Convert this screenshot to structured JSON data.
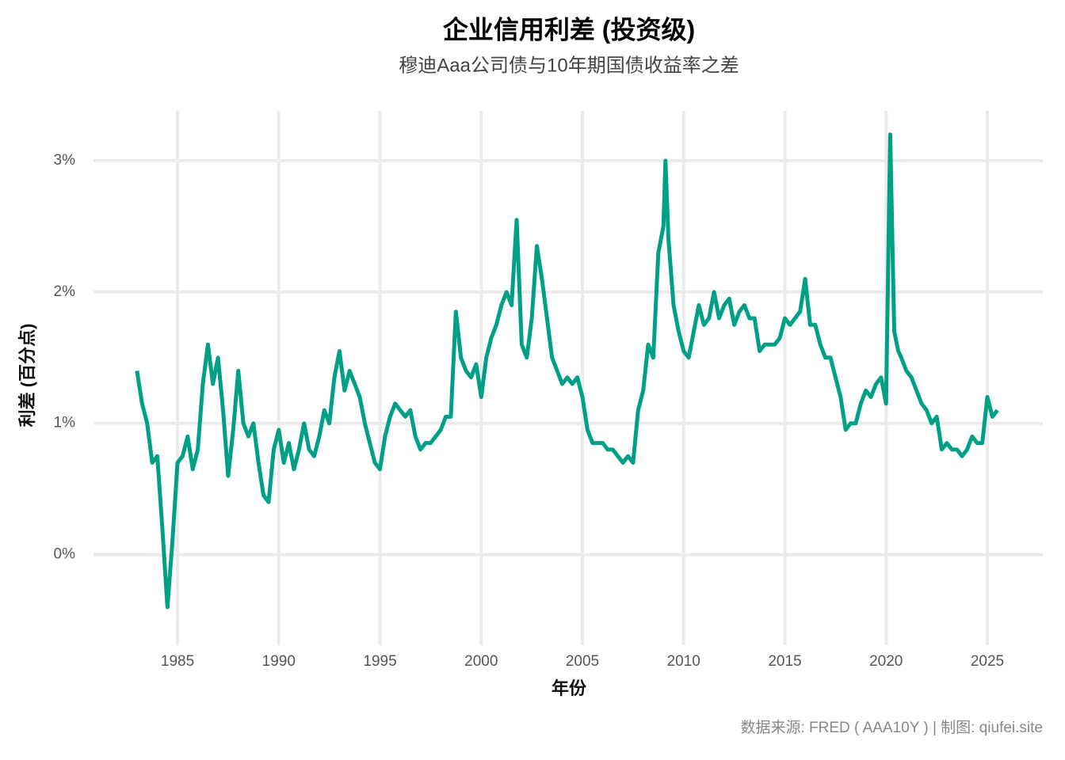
{
  "chart_data": {
    "type": "line",
    "title": "企业信用利差 (投资级)",
    "subtitle": "穆迪Aaa公司债与10年期国债收益率之差",
    "x_label": "年份",
    "y_label": "利差 (百分点)",
    "caption": "数据来源: FRED ( AAA10Y ) | 制图: qiufei.site",
    "grid": true,
    "xlim": [
      1980.85,
      2027.74
    ],
    "ylim": [
      -0.69,
      3.38
    ],
    "xticks": [
      1985,
      1990,
      1995,
      2000,
      2005,
      2010,
      2015,
      2020,
      2025
    ],
    "yticks": [
      {
        "value": 0,
        "label": "0%"
      },
      {
        "value": 1,
        "label": "1%"
      },
      {
        "value": 2,
        "label": "2%"
      },
      {
        "value": 3,
        "label": "3%"
      }
    ],
    "x": [
      1983.0,
      1983.25,
      1983.5,
      1983.75,
      1984.0,
      1984.25,
      1984.5,
      1984.75,
      1985.0,
      1985.25,
      1985.5,
      1985.75,
      1986.0,
      1986.25,
      1986.5,
      1986.75,
      1987.0,
      1987.25,
      1987.5,
      1987.75,
      1988.0,
      1988.25,
      1988.5,
      1988.75,
      1989.0,
      1989.25,
      1989.5,
      1989.75,
      1990.0,
      1990.25,
      1990.5,
      1990.75,
      1991.0,
      1991.25,
      1991.5,
      1991.75,
      1992.0,
      1992.25,
      1992.5,
      1992.75,
      1993.0,
      1993.25,
      1993.5,
      1993.75,
      1994.0,
      1994.25,
      1994.5,
      1994.75,
      1995.0,
      1995.25,
      1995.5,
      1995.75,
      1996.0,
      1996.25,
      1996.5,
      1996.75,
      1997.0,
      1997.25,
      1997.5,
      1997.75,
      1998.0,
      1998.25,
      1998.5,
      1998.75,
      1999.0,
      1999.25,
      1999.5,
      1999.75,
      2000.0,
      2000.25,
      2000.5,
      2000.75,
      2001.0,
      2001.25,
      2001.5,
      2001.75,
      2002.0,
      2002.25,
      2002.5,
      2002.75,
      2003.0,
      2003.25,
      2003.5,
      2003.75,
      2004.0,
      2004.25,
      2004.5,
      2004.75,
      2005.0,
      2005.25,
      2005.5,
      2005.75,
      2006.0,
      2006.25,
      2006.5,
      2006.75,
      2007.0,
      2007.25,
      2007.5,
      2007.75,
      2008.0,
      2008.25,
      2008.5,
      2008.75,
      2009.0,
      2009.1,
      2009.25,
      2009.5,
      2009.75,
      2010.0,
      2010.25,
      2010.5,
      2010.75,
      2011.0,
      2011.25,
      2011.5,
      2011.75,
      2012.0,
      2012.25,
      2012.5,
      2012.75,
      2013.0,
      2013.25,
      2013.5,
      2013.75,
      2014.0,
      2014.25,
      2014.5,
      2014.75,
      2015.0,
      2015.25,
      2015.5,
      2015.75,
      2016.0,
      2016.25,
      2016.5,
      2016.75,
      2017.0,
      2017.25,
      2017.5,
      2017.75,
      2018.0,
      2018.25,
      2018.5,
      2018.75,
      2019.0,
      2019.25,
      2019.5,
      2019.75,
      2020.0,
      2020.2,
      2020.4,
      2020.6,
      2020.75,
      2021.0,
      2021.25,
      2021.5,
      2021.75,
      2022.0,
      2022.25,
      2022.5,
      2022.75,
      2023.0,
      2023.25,
      2023.5,
      2023.75,
      2024.0,
      2024.25,
      2024.5,
      2024.75,
      2025.0,
      2025.25,
      2025.5
    ],
    "series": [
      {
        "name": "AAA10Y",
        "color": "#00a087",
        "values": [
          1.4,
          1.15,
          1.0,
          0.7,
          0.75,
          0.2,
          -0.4,
          0.1,
          0.7,
          0.75,
          0.9,
          0.65,
          0.8,
          1.3,
          1.6,
          1.3,
          1.5,
          1.1,
          0.6,
          0.95,
          1.4,
          1.0,
          0.9,
          1.0,
          0.7,
          0.45,
          0.4,
          0.8,
          0.95,
          0.7,
          0.85,
          0.65,
          0.8,
          1.0,
          0.8,
          0.75,
          0.9,
          1.1,
          1.0,
          1.35,
          1.55,
          1.25,
          1.4,
          1.3,
          1.2,
          1.0,
          0.85,
          0.7,
          0.65,
          0.9,
          1.05,
          1.15,
          1.1,
          1.05,
          1.1,
          0.9,
          0.8,
          0.85,
          0.85,
          0.9,
          0.95,
          1.05,
          1.05,
          1.85,
          1.5,
          1.4,
          1.35,
          1.45,
          1.2,
          1.5,
          1.65,
          1.75,
          1.9,
          2.0,
          1.9,
          2.55,
          1.6,
          1.5,
          1.8,
          2.35,
          2.1,
          1.8,
          1.5,
          1.4,
          1.3,
          1.35,
          1.3,
          1.35,
          1.2,
          0.95,
          0.85,
          0.85,
          0.85,
          0.8,
          0.8,
          0.75,
          0.7,
          0.75,
          0.7,
          1.1,
          1.25,
          1.6,
          1.5,
          2.3,
          2.5,
          3.0,
          2.4,
          1.9,
          1.7,
          1.55,
          1.5,
          1.7,
          1.9,
          1.75,
          1.8,
          2.0,
          1.8,
          1.9,
          1.95,
          1.75,
          1.85,
          1.9,
          1.8,
          1.8,
          1.55,
          1.6,
          1.6,
          1.6,
          1.65,
          1.8,
          1.75,
          1.8,
          1.85,
          2.1,
          1.75,
          1.75,
          1.6,
          1.5,
          1.5,
          1.35,
          1.2,
          0.95,
          1.0,
          1.0,
          1.15,
          1.25,
          1.2,
          1.3,
          1.35,
          1.15,
          3.2,
          1.7,
          1.55,
          1.5,
          1.4,
          1.35,
          1.25,
          1.15,
          1.1,
          1.0,
          1.05,
          0.8,
          0.85,
          0.8,
          0.8,
          0.75,
          0.8,
          0.9,
          0.85,
          0.85,
          1.2,
          1.05,
          1.1
        ]
      }
    ]
  }
}
